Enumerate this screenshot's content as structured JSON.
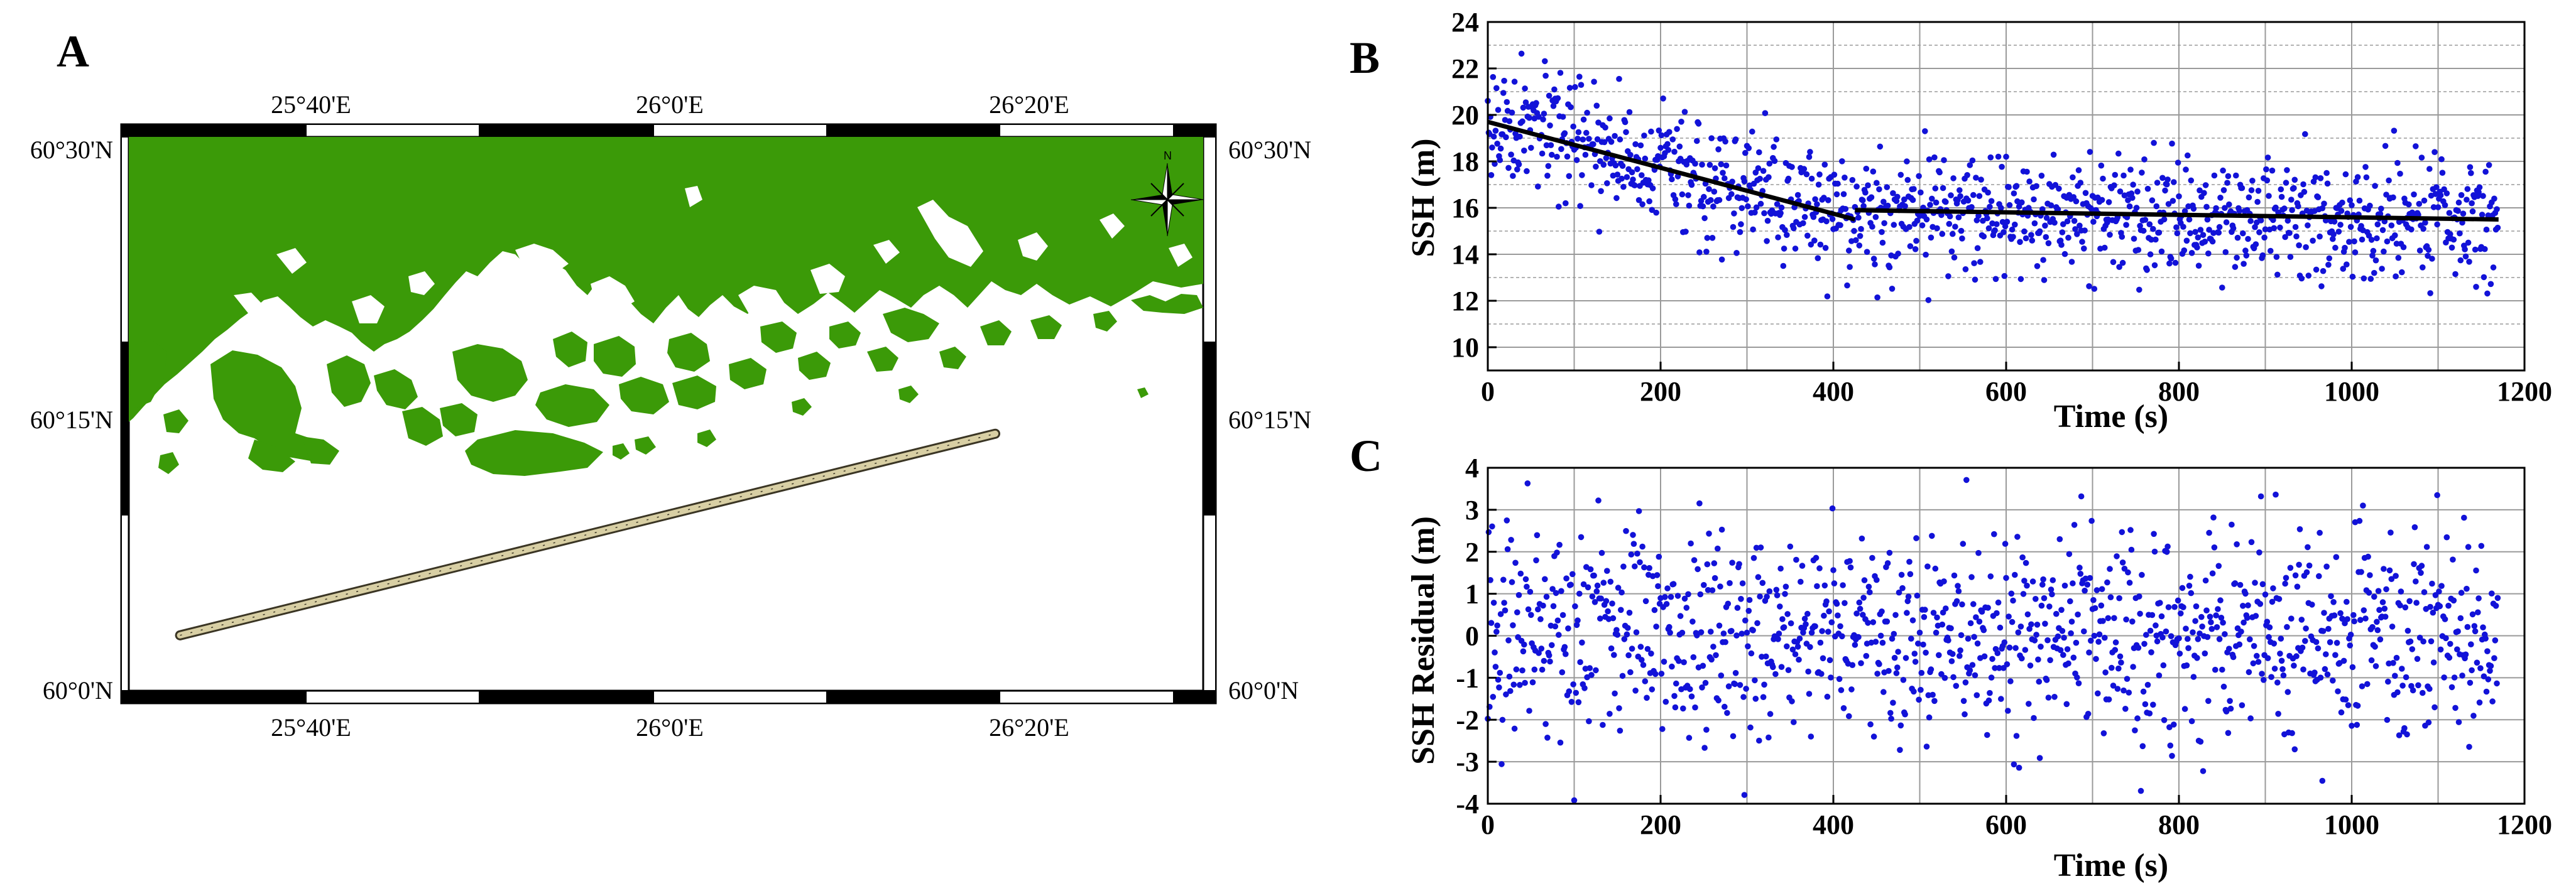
{
  "colors": {
    "land": "#3b9a08",
    "water": "#ffffff",
    "track_fill": "#d8cfa4",
    "track_edge": "#3a3524",
    "points": "#1212d8",
    "fit_line": "#000000",
    "grid": "#9a9a9a"
  },
  "panels": {
    "a": "A",
    "b": "B",
    "c": "C"
  },
  "map": {
    "lon_ticks": [
      "25°40'E",
      "26°0'E",
      "26°20'E"
    ],
    "lat_ticks": [
      "60°30'N",
      "60°15'N",
      "60°0'N"
    ],
    "lon_range_deg": [
      25.4667,
      26.5
    ],
    "lat_range_deg": [
      60.0,
      60.5
    ],
    "compass_label": "N",
    "icon": "north-arrow-compass-icon",
    "track": {
      "start": [
        25.516,
        60.05
      ],
      "end": [
        26.3,
        60.232
      ]
    }
  },
  "chart_data": [
    {
      "type": "scatter",
      "panel": "B",
      "title": "",
      "xlabel": "Time (s)",
      "ylabel": "SSH (m)",
      "xlim": [
        0,
        1200
      ],
      "ylim": [
        9,
        24
      ],
      "xticks": [
        0,
        200,
        400,
        600,
        800,
        1000,
        1200
      ],
      "yticks": [
        10,
        12,
        14,
        16,
        18,
        20,
        22,
        24
      ],
      "grid": true,
      "n_points": 1170,
      "fit_segments": [
        {
          "x": [
            0,
            425
          ],
          "y": [
            19.7,
            15.5
          ]
        },
        {
          "x": [
            425,
            1170
          ],
          "y": [
            15.9,
            15.5
          ]
        }
      ]
    },
    {
      "type": "scatter",
      "panel": "C",
      "title": "",
      "xlabel": "Time (s)",
      "ylabel": "SSH Residual (m)",
      "xlim": [
        0,
        1200
      ],
      "ylim": [
        -4,
        4
      ],
      "xticks": [
        0,
        200,
        400,
        600,
        800,
        1000,
        1200
      ],
      "yticks": [
        -4,
        -3,
        -2,
        -1,
        0,
        1,
        2,
        3,
        4
      ],
      "grid": true,
      "n_points": 1170
    }
  ]
}
